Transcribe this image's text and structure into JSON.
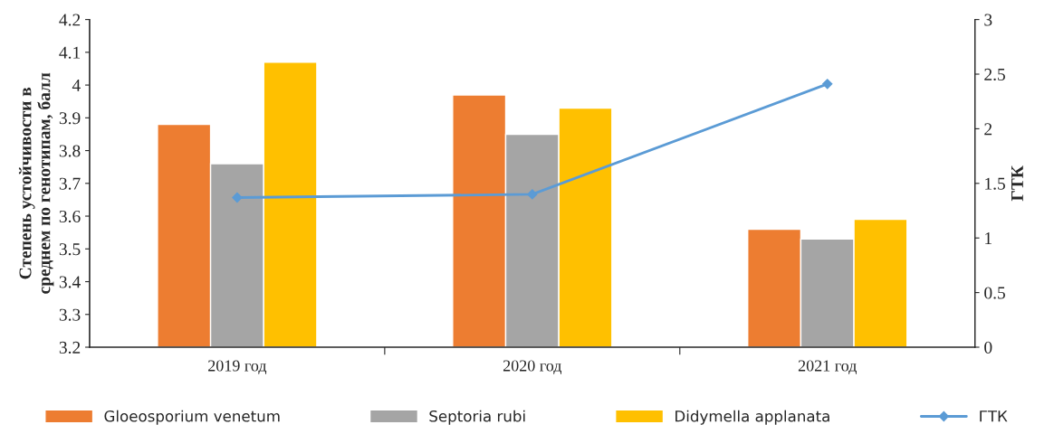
{
  "chart_data": {
    "type": "bar",
    "categories": [
      "2019 год",
      "2020 год",
      "2021 год"
    ],
    "ylabel": "Степень устойчивости в\nсреднем по генотипам, балл",
    "y2label": "ГТК",
    "ylim": [
      3.2,
      4.2
    ],
    "yticks": [
      3.2,
      3.3,
      3.4,
      3.5,
      3.6,
      3.7,
      3.8,
      3.9,
      {
        "value": 4.0,
        "label": "4"
      },
      4.1,
      4.2
    ],
    "y2lim": [
      0,
      3
    ],
    "y2ticks": [
      0,
      0.5,
      1,
      1.5,
      2,
      2.5,
      3
    ],
    "series": [
      {
        "name": "Gloeosporium venetum",
        "color": "#ed7d31",
        "values": [
          3.88,
          3.97,
          3.56
        ]
      },
      {
        "name": "Septoria rubi",
        "color": "#a5a5a5",
        "values": [
          3.76,
          3.85,
          3.53
        ]
      },
      {
        "name": "Didymella applanata",
        "color": "#ffc000",
        "values": [
          4.07,
          3.93,
          3.59
        ]
      },
      {
        "name": "ГТК",
        "type": "line",
        "axis": "y2",
        "color": "#5b9bd5",
        "marker": "diamond",
        "values": [
          1.37,
          1.4,
          2.41
        ]
      }
    ],
    "grid": false,
    "legend": "bottom"
  }
}
